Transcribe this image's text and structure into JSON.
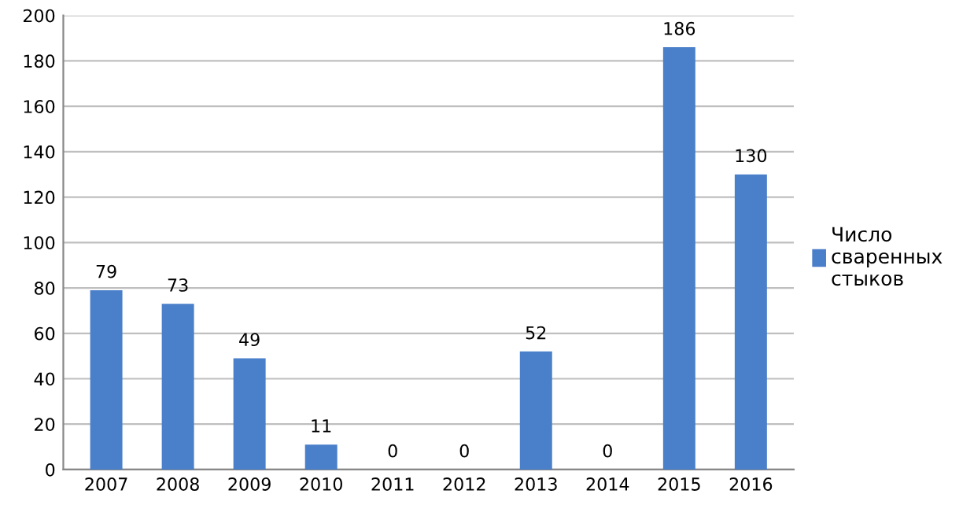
{
  "chart_data": {
    "type": "bar",
    "categories": [
      "2007",
      "2008",
      "2009",
      "2010",
      "2011",
      "2012",
      "2013",
      "2014",
      "2015",
      "2016"
    ],
    "series": [
      {
        "name": "Число сваренных стыков",
        "color": "#4a7fc9",
        "values": [
          79,
          73,
          49,
          11,
          0,
          0,
          52,
          0,
          186,
          130
        ]
      }
    ],
    "ylim": [
      0,
      200
    ],
    "yticks": [
      0,
      20,
      40,
      60,
      80,
      100,
      120,
      140,
      160,
      180,
      200
    ],
    "grid": "y",
    "legend": "right",
    "data_labels": true
  }
}
